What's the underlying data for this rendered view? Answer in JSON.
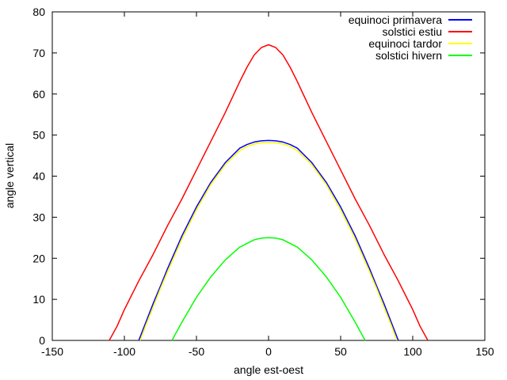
{
  "chart_data": {
    "type": "line",
    "title": "",
    "xlabel": "angle est-oest",
    "ylabel": "angle vertical",
    "xlim": [
      -150,
      150
    ],
    "ylim": [
      0,
      80
    ],
    "xticks": [
      -150,
      -100,
      -50,
      0,
      50,
      100,
      150
    ],
    "yticks": [
      0,
      10,
      20,
      30,
      40,
      50,
      60,
      70,
      80
    ],
    "xtick_labels": [
      "-150",
      "-100",
      "-50",
      "0",
      "50",
      "100",
      "150"
    ],
    "ytick_labels": [
      "0",
      "10",
      "20",
      "30",
      "40",
      "50",
      "60",
      "70",
      "80"
    ],
    "grid": false,
    "legend_position": "top-right",
    "series": [
      {
        "name": "equinoci primavera",
        "color": "#0000ff",
        "x": [
          -90,
          -85,
          -80,
          -75,
          -70,
          -60,
          -50,
          -40,
          -30,
          -20,
          -15,
          -10,
          -5,
          0,
          5,
          10,
          15,
          20,
          30,
          40,
          50,
          60,
          70,
          75,
          80,
          85,
          90
        ],
        "y": [
          0,
          4.5,
          9,
          13.2,
          17.5,
          25.5,
          32.5,
          38.5,
          43.3,
          46.8,
          47.7,
          48.3,
          48.6,
          48.7,
          48.6,
          48.3,
          47.7,
          46.8,
          43.3,
          38.5,
          32.5,
          25.5,
          17.5,
          13.2,
          9,
          4.5,
          0
        ]
      },
      {
        "name": "solstici estiu",
        "color": "#ff0000",
        "x": [
          -110.5,
          -105,
          -100,
          -90,
          -80,
          -70,
          -60,
          -50,
          -40,
          -30,
          -20,
          -15,
          -10,
          -5,
          0,
          5,
          10,
          15,
          20,
          30,
          40,
          50,
          60,
          70,
          80,
          90,
          100,
          105,
          110.5
        ],
        "y": [
          0,
          3.5,
          7.5,
          14.5,
          21,
          28,
          34.5,
          41.5,
          48.5,
          55.5,
          63,
          66.5,
          69.5,
          71.3,
          72,
          71.3,
          69.5,
          66.5,
          63,
          55.5,
          48.5,
          41.5,
          34.5,
          28,
          21,
          14.5,
          7.5,
          3.5,
          0
        ]
      },
      {
        "name": "equinoci tardor",
        "color": "#ffff00",
        "x": [
          -89,
          -85,
          -80,
          -75,
          -70,
          -60,
          -50,
          -40,
          -30,
          -20,
          -15,
          -10,
          -5,
          0,
          5,
          10,
          15,
          20,
          30,
          40,
          50,
          60,
          70,
          75,
          80,
          85,
          89
        ],
        "y": [
          0,
          3.8,
          8.2,
          12.6,
          16.8,
          24.8,
          31.8,
          38,
          42.8,
          46.2,
          47.2,
          47.8,
          48.1,
          48.2,
          48.1,
          47.8,
          47.2,
          46.2,
          42.8,
          38,
          31.8,
          24.8,
          16.8,
          12.6,
          8.2,
          3.8,
          0
        ]
      },
      {
        "name": "solstici hivern",
        "color": "#00ff00",
        "x": [
          -67,
          -60,
          -50,
          -40,
          -30,
          -20,
          -10,
          -5,
          0,
          5,
          10,
          20,
          30,
          40,
          50,
          60,
          67
        ],
        "y": [
          0,
          4.5,
          10.5,
          15.5,
          19.6,
          22.7,
          24.5,
          24.9,
          25,
          24.9,
          24.5,
          22.7,
          19.6,
          15.5,
          10.5,
          4.5,
          0
        ]
      }
    ]
  }
}
